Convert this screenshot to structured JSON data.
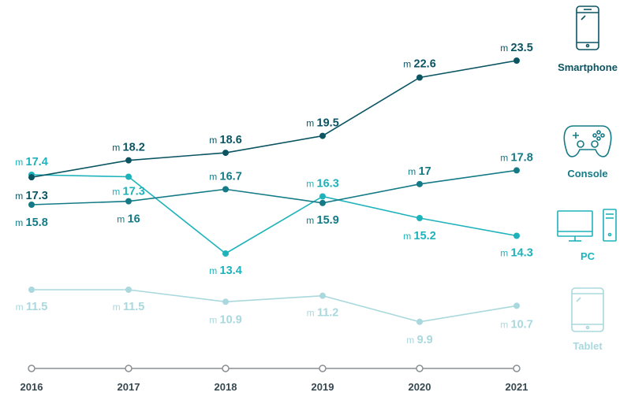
{
  "chart_data": {
    "type": "line",
    "x": [
      "2016",
      "2017",
      "2018",
      "2019",
      "2020",
      "2021"
    ],
    "value_prefix": "m",
    "series": [
      {
        "name": "Smartphone",
        "color": "#0b5563",
        "icon": "smartphone-icon",
        "values": [
          17.3,
          18.2,
          18.6,
          19.5,
          22.6,
          23.5
        ]
      },
      {
        "name": "Console",
        "color": "#147b86",
        "icon": "gamepad-icon",
        "values": [
          15.8,
          16,
          16.7,
          15.9,
          17,
          17.8
        ]
      },
      {
        "name": "PC",
        "color": "#1eb3bb",
        "icon": "desktop-computer-icon",
        "values": [
          17.4,
          17.3,
          13.4,
          16.3,
          15.2,
          14.3
        ]
      },
      {
        "name": "Tablet",
        "color": "#a9d8dd",
        "icon": "tablet-icon",
        "values": [
          11.5,
          11.5,
          10.9,
          11.2,
          9.9,
          10.7
        ]
      }
    ],
    "ylim": [
      8,
      26
    ],
    "legend": "right"
  }
}
